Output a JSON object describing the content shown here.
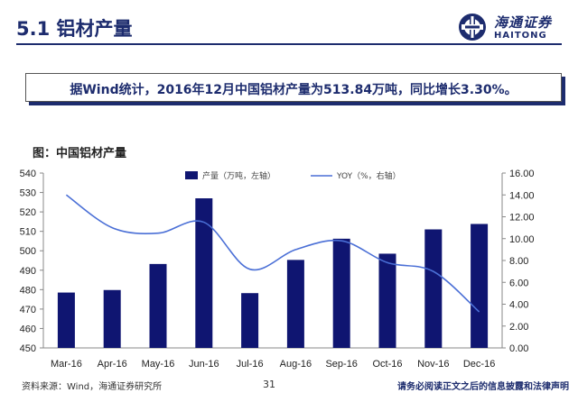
{
  "header": {
    "title": "5.1 铝材产量",
    "logo_cn": "海通证券",
    "logo_en": "HAITONG"
  },
  "summary": "据Wind统计，2016年12月中国铝材产量为513.84万吨，同比增长3.30%。",
  "figure_label": "图：中国铝材产量",
  "chart_data": {
    "type": "bar",
    "categories": [
      "Mar-16",
      "Apr-16",
      "May-16",
      "Jun-16",
      "Jul-16",
      "Aug-16",
      "Sep-16",
      "Oct-16",
      "Nov-16",
      "Dec-16"
    ],
    "series": [
      {
        "name": "产量（万吨，左轴）",
        "type": "bar",
        "axis": "left",
        "color": "#0f1571",
        "values": [
          478.5,
          479.8,
          493.2,
          527.0,
          478.2,
          495.3,
          506.2,
          498.5,
          511.0,
          513.8
        ]
      },
      {
        "name": "YOY（%，右轴）",
        "type": "line",
        "axis": "right",
        "color": "#4a6fd6",
        "values": [
          14.0,
          11.0,
          10.5,
          11.5,
          7.2,
          9.0,
          9.8,
          7.8,
          7.0,
          3.3
        ]
      }
    ],
    "y_left": {
      "range": [
        450,
        540
      ],
      "ticks": [
        "450",
        "460",
        "470",
        "480",
        "490",
        "500",
        "510",
        "520",
        "530",
        "540"
      ]
    },
    "y_right": {
      "range": [
        0,
        16
      ],
      "ticks": [
        "0.00",
        "2.00",
        "4.00",
        "6.00",
        "8.00",
        "10.00",
        "12.00",
        "14.00",
        "16.00"
      ]
    },
    "legend_position": "top",
    "grid": false
  },
  "footer": {
    "source": "资料来源：Wind，海通证券研究所",
    "page": "31",
    "disclaimer": "请务必阅读正文之后的信息披露和法律声明"
  }
}
